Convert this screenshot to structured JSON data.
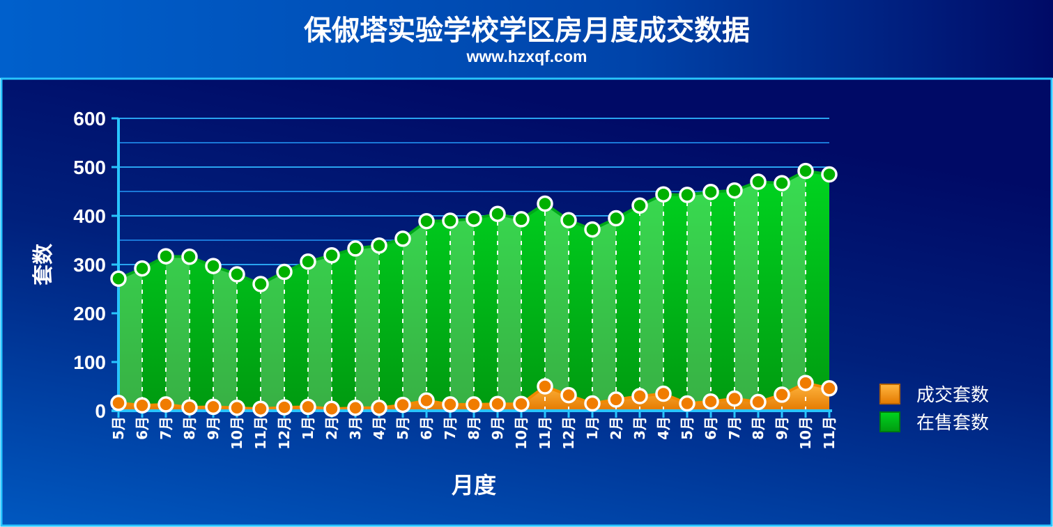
{
  "title": "保俶塔实验学校学区房月度成交数据",
  "subtitle": "www.hzxqf.com",
  "colors": {
    "background_top": "#0057c4",
    "background_dark": "#000a66",
    "border": "#29c5ff",
    "sold": "#f08a00",
    "onsale": "#00b000"
  },
  "chart_data": {
    "type": "area",
    "title": "保俶塔实验学校学区房月度成交数据",
    "subtitle": "www.hzxqf.com",
    "xlabel": "月度",
    "ylabel": "套数",
    "ylim": [
      0,
      600
    ],
    "yticks": [
      0,
      100,
      200,
      300,
      400,
      500,
      600
    ],
    "grid": true,
    "legend_position": "right",
    "categories": [
      "5月",
      "6月",
      "7月",
      "8月",
      "9月",
      "10月",
      "11月",
      "12月",
      "1月",
      "2月",
      "3月",
      "4月",
      "5月",
      "6月",
      "7月",
      "8月",
      "9月",
      "10月",
      "11月",
      "12月",
      "1月",
      "2月",
      "3月",
      "4月",
      "5月",
      "6月",
      "7月",
      "8月",
      "9月",
      "10月",
      "11月"
    ],
    "series": [
      {
        "name": "成交套数",
        "color": "#f08a00",
        "values": [
          16,
          11,
          13,
          7,
          8,
          6,
          4,
          7,
          8,
          4,
          6,
          6,
          12,
          21,
          13,
          13,
          14,
          14,
          50,
          32,
          15,
          23,
          30,
          35,
          15,
          19,
          25,
          18,
          33,
          57,
          46
        ]
      },
      {
        "name": "在售套数",
        "color": "#00b000",
        "values": [
          271,
          292,
          317,
          316,
          297,
          280,
          260,
          285,
          306,
          319,
          333,
          339,
          353,
          389,
          390,
          394,
          404,
          393,
          425,
          391,
          372,
          395,
          421,
          444,
          443,
          449,
          452,
          470,
          467,
          492,
          485
        ]
      }
    ]
  }
}
